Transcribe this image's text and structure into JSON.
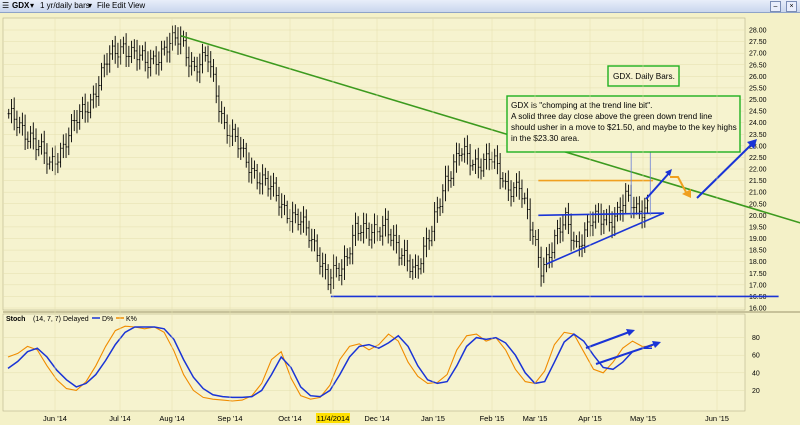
{
  "toolbar": {
    "symbol": "GDX",
    "period": "1 yr/daily bars",
    "menus": [
      "File",
      "Edit",
      "View"
    ]
  },
  "colors": {
    "background": "#f4f1c8",
    "price_bars": "#000000",
    "trend_green": "#3c9a1e",
    "support_blue": "#1a34d6",
    "resistance_orange": "#f0a020",
    "annotation_border": "#1fb01f",
    "stoch_d": "#1a34d6",
    "stoch_k": "#f08c00"
  },
  "chart_data": [
    {
      "type": "ohlc",
      "price_axis": {
        "min": 16.0,
        "max": 28.0,
        "step": 0.5,
        "labels": [
          "16.00",
          "16.50",
          "17.00",
          "17.50",
          "18.00",
          "18.50",
          "19.00",
          "19.50",
          "20.00",
          "20.50",
          "21.00",
          "21.50",
          "22.00",
          "22.50",
          "23.00",
          "23.50",
          "24.00",
          "24.50",
          "25.00",
          "25.50",
          "26.00",
          "26.50",
          "27.00",
          "27.50",
          "28.00"
        ]
      },
      "months": [
        "Jun '14",
        "Jul '14",
        "Aug '14",
        "Sep '14",
        "Oct '14",
        "11/4/2014",
        "Dec '14",
        "Jan '15",
        "Feb '15",
        "Mar '15",
        "Apr '15",
        "May '15",
        "Jun '15"
      ],
      "highlighted_month": "11/4/2014",
      "bars_count": 235,
      "key_closes": [
        {
          "bar": 0,
          "value": 24.2
        },
        {
          "bar": 8,
          "value": 23.5
        },
        {
          "bar": 15,
          "value": 22.1
        },
        {
          "bar": 22,
          "value": 23.5
        },
        {
          "bar": 30,
          "value": 25.0
        },
        {
          "bar": 36,
          "value": 26.6
        },
        {
          "bar": 42,
          "value": 27.4
        },
        {
          "bar": 50,
          "value": 26.5
        },
        {
          "bar": 56,
          "value": 27.1
        },
        {
          "bar": 63,
          "value": 27.6
        },
        {
          "bar": 68,
          "value": 26.4
        },
        {
          "bar": 73,
          "value": 26.7
        },
        {
          "bar": 79,
          "value": 24.0
        },
        {
          "bar": 86,
          "value": 22.5
        },
        {
          "bar": 93,
          "value": 21.5
        },
        {
          "bar": 100,
          "value": 20.5
        },
        {
          "bar": 107,
          "value": 19.6
        },
        {
          "bar": 113,
          "value": 18.6
        },
        {
          "bar": 117,
          "value": 17.2
        },
        {
          "bar": 122,
          "value": 17.6
        },
        {
          "bar": 127,
          "value": 19.6
        },
        {
          "bar": 132,
          "value": 19.0
        },
        {
          "bar": 138,
          "value": 19.8
        },
        {
          "bar": 143,
          "value": 18.2
        },
        {
          "bar": 149,
          "value": 17.8
        },
        {
          "bar": 155,
          "value": 19.2
        },
        {
          "bar": 160,
          "value": 21.6
        },
        {
          "bar": 165,
          "value": 22.7
        },
        {
          "bar": 170,
          "value": 22.2
        },
        {
          "bar": 176,
          "value": 22.6
        },
        {
          "bar": 182,
          "value": 21.2
        },
        {
          "bar": 187,
          "value": 21.4
        },
        {
          "bar": 191,
          "value": 19.4
        },
        {
          "bar": 195,
          "value": 17.8
        },
        {
          "bar": 199,
          "value": 18.7
        },
        {
          "bar": 204,
          "value": 19.7
        },
        {
          "bar": 208,
          "value": 18.8
        },
        {
          "bar": 213,
          "value": 19.6
        },
        {
          "bar": 218,
          "value": 19.9
        },
        {
          "bar": 222,
          "value": 20.0
        },
        {
          "bar": 226,
          "value": 20.6
        },
        {
          "bar": 230,
          "value": 20.3
        },
        {
          "bar": 234,
          "value": 20.5
        }
      ],
      "trend_lines": [
        {
          "name": "green down trend line",
          "from": [
            63,
            27.75
          ],
          "to": [
            292,
            19.6
          ]
        },
        {
          "name": "support",
          "from": [
            118,
            16.5
          ],
          "to": [
            282,
            16.5
          ]
        },
        {
          "name": "resistance",
          "from": [
            194,
            21.5
          ],
          "to": [
            236,
            21.5
          ]
        },
        {
          "name": "triangle top",
          "from": [
            194,
            20.0
          ],
          "to": [
            240,
            20.1
          ]
        },
        {
          "name": "triangle bottom",
          "from": [
            197,
            17.9
          ],
          "to": [
            240,
            20.1
          ]
        }
      ],
      "vertical_markers": [
        {
          "bar": 228,
          "from": 20.0,
          "to": 23.0
        },
        {
          "bar": 235,
          "from": 20.0,
          "to": 23.0
        }
      ],
      "annotations": {
        "title_box": "GDX. Daily Bars.",
        "comment_box": [
          "GDX is \"chomping at the trend line bit\".",
          "A solid three day close above the green down trend line",
          "should usher in a move to $21.50, and maybe to the key highs",
          "in the $23.30 area."
        ]
      }
    },
    {
      "type": "line",
      "label": "Stoch",
      "params": "(14, 7, 7) Delayed",
      "legend": [
        "D%",
        "K%"
      ],
      "y_axis": {
        "min": 0,
        "max": 100,
        "labels": [
          "20",
          "40",
          "60",
          "80"
        ]
      },
      "series": [
        {
          "name": "D%",
          "values": [
            45,
            53,
            64,
            68,
            58,
            43,
            32,
            24,
            28,
            38,
            54,
            72,
            86,
            92,
            92,
            92,
            90,
            78,
            55,
            35,
            22,
            15,
            13,
            12,
            12,
            13,
            20,
            38,
            58,
            46,
            24,
            14,
            13,
            20,
            38,
            58,
            70,
            72,
            68,
            74,
            82,
            70,
            48,
            32,
            28,
            30,
            48,
            70,
            80,
            78,
            80,
            74,
            60,
            40,
            28,
            30,
            52,
            75,
            84,
            76,
            60,
            46,
            44,
            52,
            64,
            68,
            68
          ]
        },
        {
          "name": "K%",
          "values": [
            58,
            62,
            70,
            66,
            48,
            32,
            22,
            20,
            30,
            48,
            70,
            88,
            93,
            92,
            90,
            92,
            86,
            65,
            38,
            20,
            12,
            10,
            9,
            8,
            9,
            14,
            28,
            55,
            64,
            34,
            14,
            10,
            12,
            26,
            55,
            70,
            73,
            66,
            72,
            84,
            76,
            52,
            36,
            28,
            29,
            38,
            66,
            82,
            84,
            76,
            80,
            66,
            44,
            30,
            28,
            42,
            72,
            86,
            84,
            64,
            44,
            40,
            52,
            68,
            76,
            70,
            70
          ]
        }
      ]
    }
  ]
}
